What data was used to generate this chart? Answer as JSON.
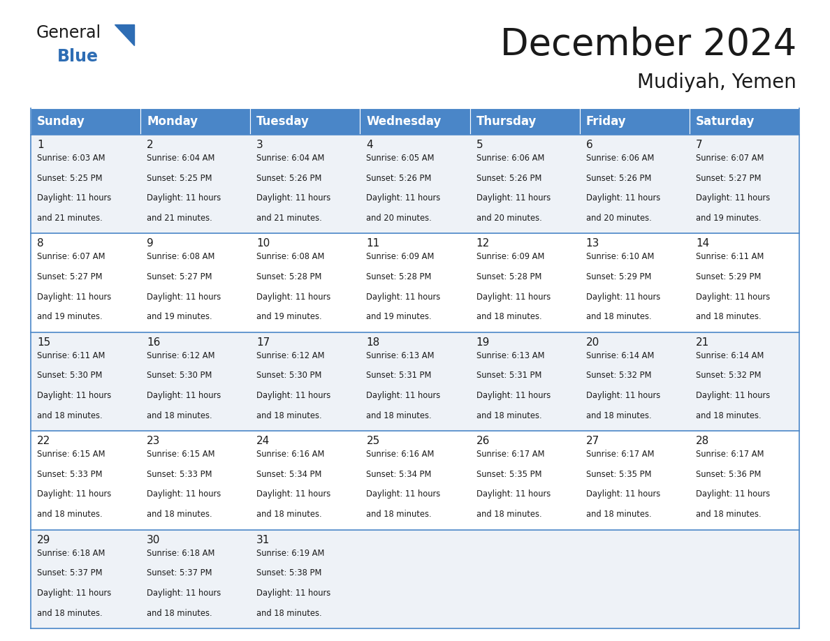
{
  "title": "December 2024",
  "subtitle": "Mudiyah, Yemen",
  "header_bg": "#4a86c8",
  "header_fg": "#ffffff",
  "days_of_week": [
    "Sunday",
    "Monday",
    "Tuesday",
    "Wednesday",
    "Thursday",
    "Friday",
    "Saturday"
  ],
  "weeks": [
    [
      {
        "day": 1,
        "sunrise": "6:03 AM",
        "sunset": "5:25 PM",
        "daylight_hours": 11,
        "daylight_minutes": 21
      },
      {
        "day": 2,
        "sunrise": "6:04 AM",
        "sunset": "5:25 PM",
        "daylight_hours": 11,
        "daylight_minutes": 21
      },
      {
        "day": 3,
        "sunrise": "6:04 AM",
        "sunset": "5:26 PM",
        "daylight_hours": 11,
        "daylight_minutes": 21
      },
      {
        "day": 4,
        "sunrise": "6:05 AM",
        "sunset": "5:26 PM",
        "daylight_hours": 11,
        "daylight_minutes": 20
      },
      {
        "day": 5,
        "sunrise": "6:06 AM",
        "sunset": "5:26 PM",
        "daylight_hours": 11,
        "daylight_minutes": 20
      },
      {
        "day": 6,
        "sunrise": "6:06 AM",
        "sunset": "5:26 PM",
        "daylight_hours": 11,
        "daylight_minutes": 20
      },
      {
        "day": 7,
        "sunrise": "6:07 AM",
        "sunset": "5:27 PM",
        "daylight_hours": 11,
        "daylight_minutes": 19
      }
    ],
    [
      {
        "day": 8,
        "sunrise": "6:07 AM",
        "sunset": "5:27 PM",
        "daylight_hours": 11,
        "daylight_minutes": 19
      },
      {
        "day": 9,
        "sunrise": "6:08 AM",
        "sunset": "5:27 PM",
        "daylight_hours": 11,
        "daylight_minutes": 19
      },
      {
        "day": 10,
        "sunrise": "6:08 AM",
        "sunset": "5:28 PM",
        "daylight_hours": 11,
        "daylight_minutes": 19
      },
      {
        "day": 11,
        "sunrise": "6:09 AM",
        "sunset": "5:28 PM",
        "daylight_hours": 11,
        "daylight_minutes": 19
      },
      {
        "day": 12,
        "sunrise": "6:09 AM",
        "sunset": "5:28 PM",
        "daylight_hours": 11,
        "daylight_minutes": 18
      },
      {
        "day": 13,
        "sunrise": "6:10 AM",
        "sunset": "5:29 PM",
        "daylight_hours": 11,
        "daylight_minutes": 18
      },
      {
        "day": 14,
        "sunrise": "6:11 AM",
        "sunset": "5:29 PM",
        "daylight_hours": 11,
        "daylight_minutes": 18
      }
    ],
    [
      {
        "day": 15,
        "sunrise": "6:11 AM",
        "sunset": "5:30 PM",
        "daylight_hours": 11,
        "daylight_minutes": 18
      },
      {
        "day": 16,
        "sunrise": "6:12 AM",
        "sunset": "5:30 PM",
        "daylight_hours": 11,
        "daylight_minutes": 18
      },
      {
        "day": 17,
        "sunrise": "6:12 AM",
        "sunset": "5:30 PM",
        "daylight_hours": 11,
        "daylight_minutes": 18
      },
      {
        "day": 18,
        "sunrise": "6:13 AM",
        "sunset": "5:31 PM",
        "daylight_hours": 11,
        "daylight_minutes": 18
      },
      {
        "day": 19,
        "sunrise": "6:13 AM",
        "sunset": "5:31 PM",
        "daylight_hours": 11,
        "daylight_minutes": 18
      },
      {
        "day": 20,
        "sunrise": "6:14 AM",
        "sunset": "5:32 PM",
        "daylight_hours": 11,
        "daylight_minutes": 18
      },
      {
        "day": 21,
        "sunrise": "6:14 AM",
        "sunset": "5:32 PM",
        "daylight_hours": 11,
        "daylight_minutes": 18
      }
    ],
    [
      {
        "day": 22,
        "sunrise": "6:15 AM",
        "sunset": "5:33 PM",
        "daylight_hours": 11,
        "daylight_minutes": 18
      },
      {
        "day": 23,
        "sunrise": "6:15 AM",
        "sunset": "5:33 PM",
        "daylight_hours": 11,
        "daylight_minutes": 18
      },
      {
        "day": 24,
        "sunrise": "6:16 AM",
        "sunset": "5:34 PM",
        "daylight_hours": 11,
        "daylight_minutes": 18
      },
      {
        "day": 25,
        "sunrise": "6:16 AM",
        "sunset": "5:34 PM",
        "daylight_hours": 11,
        "daylight_minutes": 18
      },
      {
        "day": 26,
        "sunrise": "6:17 AM",
        "sunset": "5:35 PM",
        "daylight_hours": 11,
        "daylight_minutes": 18
      },
      {
        "day": 27,
        "sunrise": "6:17 AM",
        "sunset": "5:35 PM",
        "daylight_hours": 11,
        "daylight_minutes": 18
      },
      {
        "day": 28,
        "sunrise": "6:17 AM",
        "sunset": "5:36 PM",
        "daylight_hours": 11,
        "daylight_minutes": 18
      }
    ],
    [
      {
        "day": 29,
        "sunrise": "6:18 AM",
        "sunset": "5:37 PM",
        "daylight_hours": 11,
        "daylight_minutes": 18
      },
      {
        "day": 30,
        "sunrise": "6:18 AM",
        "sunset": "5:37 PM",
        "daylight_hours": 11,
        "daylight_minutes": 18
      },
      {
        "day": 31,
        "sunrise": "6:19 AM",
        "sunset": "5:38 PM",
        "daylight_hours": 11,
        "daylight_minutes": 18
      },
      null,
      null,
      null,
      null
    ]
  ],
  "bg_color": "#ffffff",
  "text_color": "#1a1a1a",
  "border_color": "#4a86c8",
  "cell_alt_bg": "#eef2f7",
  "title_fontsize": 38,
  "subtitle_fontsize": 20,
  "header_fontsize": 12,
  "daynum_fontsize": 11,
  "cell_fontsize": 8.3,
  "logo_general_color": "#1a1a1a",
  "logo_blue_color": "#2e6db4",
  "logo_triangle_color": "#2e6db4"
}
